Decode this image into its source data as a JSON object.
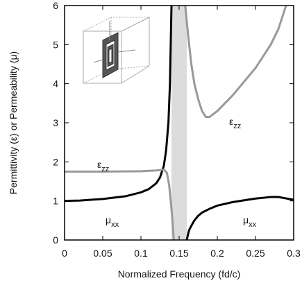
{
  "chart_data": {
    "type": "line",
    "xlabel": "Normalized Frequency (fd/c)",
    "ylabel": "Permittivity (ε) or Permeability (μ)",
    "xlim": [
      0,
      0.3
    ],
    "xticks": [
      0,
      0.05,
      0.1,
      0.15,
      0.2,
      0.25,
      0.3
    ],
    "ylim": [
      0,
      6
    ],
    "yticks": [
      0,
      1,
      2,
      3,
      4,
      5,
      6
    ],
    "shaded_band": [
      0.14,
      0.16
    ],
    "band_color": "#dcdcdc",
    "series": [
      {
        "color": "#000000",
        "x": [
          0,
          0.02,
          0.05,
          0.08,
          0.1,
          0.11,
          0.12,
          0.125,
          0.13,
          0.133,
          0.136,
          0.138,
          0.14,
          0.145,
          0.16,
          0.163,
          0.167,
          0.17,
          0.175,
          0.18,
          0.19,
          0.2,
          0.22,
          0.25,
          0.27,
          0.28,
          0.3
        ],
        "values": [
          1,
          1.01,
          1.05,
          1.12,
          1.22,
          1.3,
          1.45,
          1.6,
          1.9,
          2.3,
          3.0,
          4.0,
          6,
          null,
          0,
          0.25,
          0.4,
          0.5,
          0.62,
          0.7,
          0.8,
          0.88,
          0.97,
          1.06,
          1.1,
          1.1,
          1.03
        ]
      },
      {
        "color": "#999999",
        "x": [
          0,
          0.05,
          0.1,
          0.12,
          0.13,
          0.134,
          0.137,
          0.14,
          0.142,
          0.143,
          0.15,
          0.158,
          0.162,
          0.166,
          0.17,
          0.175,
          0.18,
          0.185,
          0.19,
          0.2,
          0.22,
          0.25,
          0.27,
          0.28,
          0.29
        ],
        "values": [
          1.75,
          1.75,
          1.76,
          1.78,
          1.8,
          1.72,
          1.4,
          0.8,
          0.3,
          0,
          null,
          6,
          5.2,
          4.5,
          4.0,
          3.6,
          3.3,
          3.15,
          3.15,
          3.3,
          3.7,
          4.4,
          5.0,
          5.4,
          6
        ]
      }
    ],
    "annotations": [
      {
        "text": "ε",
        "subscript": "zz"
      },
      {
        "text": "ε",
        "subscript": "zz"
      },
      {
        "text": "μ",
        "subscript": "xx"
      },
      {
        "text": "μ",
        "subscript": "xx"
      }
    ]
  }
}
